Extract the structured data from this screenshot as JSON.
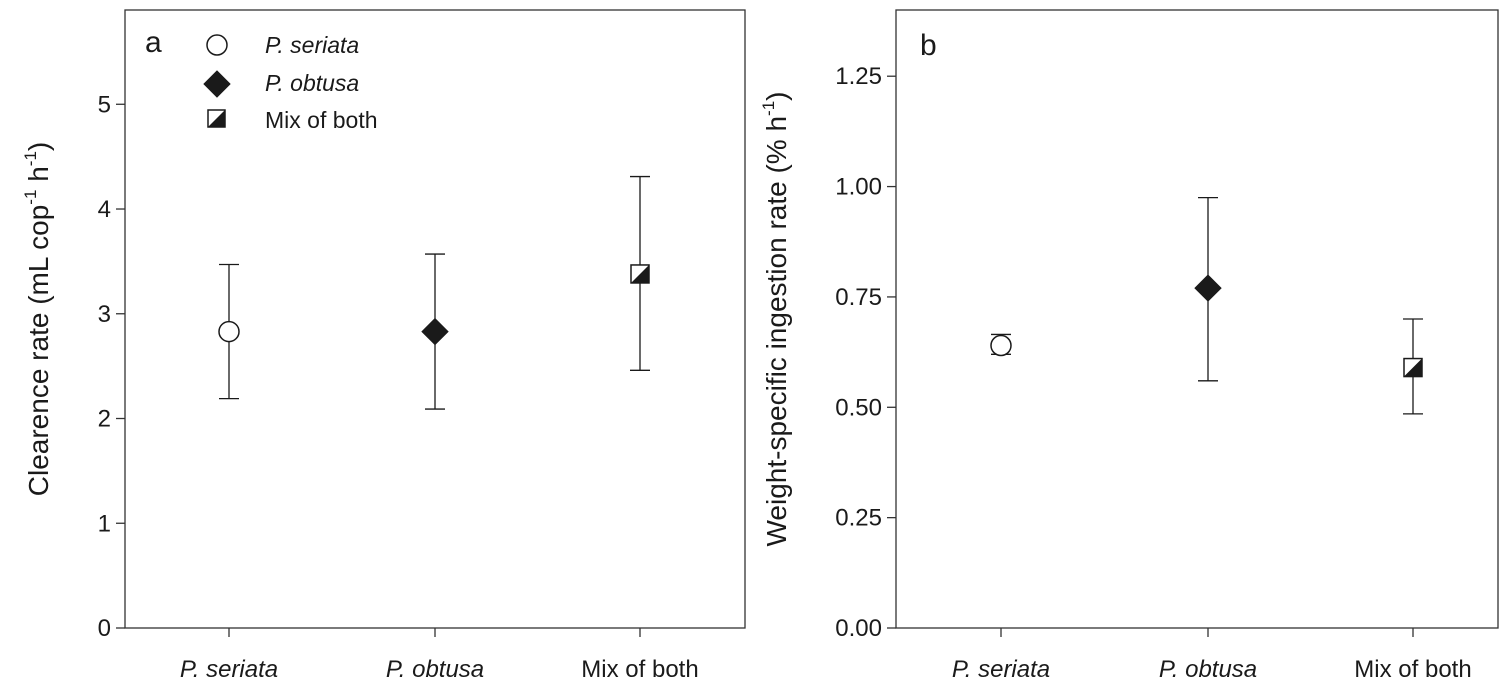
{
  "chart_data": [
    {
      "panel_label": "a",
      "type": "scatter",
      "ylabel": "Clearence rate (mL cop",
      "ylabel_sup1": "-1",
      "ylabel_mid": " h",
      "ylabel_sup2": "-1",
      "ylabel_end": ")",
      "ylim": [
        0,
        5.9
      ],
      "yticks": [
        "0",
        "1",
        "2",
        "3",
        "4",
        "5"
      ],
      "ytick_values": [
        0,
        1,
        2,
        3,
        4,
        5
      ],
      "categories": [
        "P. seriata",
        "P. obtusa",
        "Mix of both"
      ],
      "category_italic": [
        true,
        true,
        false
      ],
      "points": [
        {
          "category": "P. seriata",
          "marker": "open-circle",
          "y": 2.83,
          "err_low": 2.19,
          "err_high": 3.47
        },
        {
          "category": "P. obtusa",
          "marker": "filled-diamond",
          "y": 2.83,
          "err_low": 2.09,
          "err_high": 3.57
        },
        {
          "category": "Mix of both",
          "marker": "half-square",
          "y": 3.38,
          "err_low": 2.46,
          "err_high": 4.31
        }
      ],
      "legend": [
        {
          "label": "P. seriata",
          "marker": "open-circle",
          "italic": true
        },
        {
          "label": "P. obtusa",
          "marker": "filled-diamond",
          "italic": true
        },
        {
          "label": "Mix of both",
          "marker": "half-square",
          "italic": false
        }
      ],
      "legend_position": "top-left"
    },
    {
      "panel_label": "b",
      "type": "scatter",
      "ylabel": "Weight-specific ingestion rate  (% h",
      "ylabel_sup1": "-1",
      "ylabel_end": ")",
      "ylim": [
        0,
        1.4
      ],
      "yticks": [
        "0.00",
        "0.25",
        "0.50",
        "0.75",
        "1.00",
        "1.25"
      ],
      "ytick_values": [
        0,
        0.25,
        0.5,
        0.75,
        1.0,
        1.25
      ],
      "categories": [
        "P. seriata",
        "P. obtusa",
        "Mix of both"
      ],
      "category_italic": [
        true,
        true,
        false
      ],
      "points": [
        {
          "category": "P. seriata",
          "marker": "open-circle",
          "y": 0.64,
          "err_low": 0.62,
          "err_high": 0.665
        },
        {
          "category": "P. obtusa",
          "marker": "filled-diamond",
          "y": 0.77,
          "err_low": 0.56,
          "err_high": 0.975
        },
        {
          "category": "Mix of both",
          "marker": "half-square",
          "y": 0.59,
          "err_low": 0.485,
          "err_high": 0.7
        }
      ]
    }
  ]
}
